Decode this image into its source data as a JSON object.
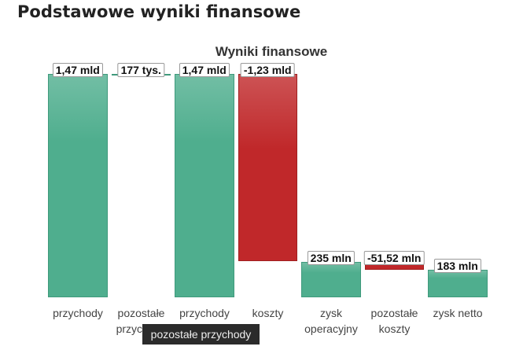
{
  "header": {
    "title": "Podstawowe wyniki finansowe"
  },
  "tooltip": "pozostałe przychody",
  "chart_data": {
    "type": "waterfall",
    "title": "Wyniki finansowe",
    "categories": [
      "przychody",
      "pozostałe przychody",
      "przychody",
      "koszty",
      "zysk operacyjny",
      "pozostałe koszty",
      "zysk netto"
    ],
    "values": [
      1470000000,
      177000,
      1470000000,
      -1230000000,
      235000000,
      -51520000,
      183000000
    ],
    "value_labels": [
      "1,47 mld",
      "177 tys.",
      "1,47 mld",
      "-1,23 mld",
      "235 mln",
      "-51,52 mln",
      "183 mln"
    ],
    "totals": [
      false,
      false,
      true,
      false,
      true,
      false,
      true
    ],
    "positive_color": "#4fae8e",
    "negative_color": "#c0282a"
  }
}
